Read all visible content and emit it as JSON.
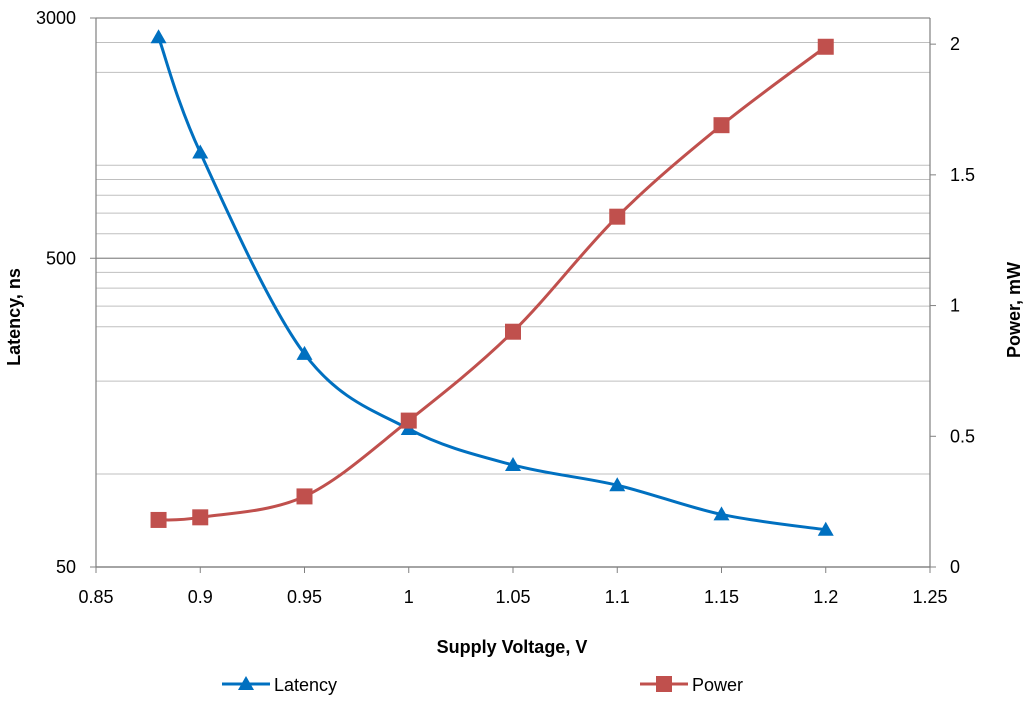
{
  "chart_data": {
    "type": "line",
    "title": "",
    "xlabel": "Supply Voltage, V",
    "ylabel_left": "Latency, ns",
    "ylabel_right": "Power, mW",
    "x_axis": {
      "min": 0.85,
      "max": 1.25,
      "ticks": [
        0.85,
        0.9,
        0.95,
        1,
        1.05,
        1.1,
        1.15,
        1.2,
        1.25
      ],
      "tick_labels": [
        "0.85",
        "0.9",
        "0.95",
        "1",
        "1.05",
        "1.1",
        "1.15",
        "1.2",
        "1.25"
      ]
    },
    "y_left_axis": {
      "scale": "log",
      "min": 50,
      "max": 3000,
      "ticks": [
        50,
        500,
        3000
      ],
      "tick_labels": [
        "50",
        "500",
        "3000"
      ],
      "minor_gridlines": [
        100,
        200,
        300,
        350,
        400,
        450,
        600,
        700,
        800,
        900,
        1000,
        2000,
        2500
      ]
    },
    "y_right_axis": {
      "scale": "linear",
      "min": 0,
      "max": 2.1,
      "ticks": [
        0,
        0.5,
        1,
        1.5,
        2
      ],
      "tick_labels": [
        "0",
        "0.5",
        "1",
        "1.5",
        "2"
      ]
    },
    "grid": true,
    "legend_position": "bottom",
    "series": [
      {
        "name": "Latency",
        "axis": "left",
        "color": "#0070C0",
        "marker": "triangle",
        "x": [
          0.88,
          0.9,
          0.95,
          1,
          1.05,
          1.1,
          1.15,
          1.2
        ],
        "y": [
          2600,
          1100,
          245,
          140,
          107,
          92,
          74,
          66
        ]
      },
      {
        "name": "Power",
        "axis": "right",
        "color": "#C0504D",
        "marker": "square",
        "x": [
          0.88,
          0.9,
          0.95,
          1,
          1.05,
          1.1,
          1.15,
          1.2
        ],
        "y": [
          0.18,
          0.19,
          0.27,
          0.56,
          0.9,
          1.34,
          1.69,
          1.99
        ]
      }
    ]
  }
}
